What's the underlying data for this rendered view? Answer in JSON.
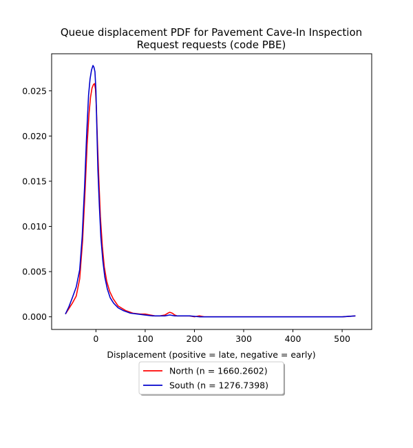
{
  "chart_data": {
    "type": "line",
    "title_lines": [
      "Queue displacement PDF for Pavement Cave-In Inspection",
      "Request  requests (code PBE)"
    ],
    "xlabel": "Displacement (positive = late, negative = early)",
    "ylabel": "",
    "xlim": [
      -90,
      560
    ],
    "ylim": [
      -0.0014,
      0.0291
    ],
    "xticks": [
      0,
      100,
      200,
      300,
      400,
      500
    ],
    "yticks": [
      0.0,
      0.005,
      0.01,
      0.015,
      0.02,
      0.025
    ],
    "ytick_labels": [
      "0.000",
      "0.005",
      "0.010",
      "0.015",
      "0.020",
      "0.025"
    ],
    "grid": false,
    "legend_position": "bottom-center, below plot",
    "series": [
      {
        "name": "North (n = 1660.2602)",
        "color": "#ff0000",
        "x": [
          -62,
          -55,
          -48,
          -40,
          -33,
          -27,
          -22,
          -18,
          -14,
          -11,
          -8,
          -5,
          -3,
          -1,
          1,
          3,
          6,
          9,
          13,
          17,
          22,
          28,
          35,
          45,
          60,
          75,
          90,
          100,
          110,
          120,
          130,
          140,
          146,
          150,
          155,
          160,
          165,
          175,
          190,
          200,
          210,
          220,
          240,
          270,
          300,
          350,
          400,
          450,
          500,
          527
        ],
        "y": [
          0.0003,
          0.0009,
          0.0015,
          0.0023,
          0.0042,
          0.0085,
          0.014,
          0.019,
          0.0225,
          0.0243,
          0.0253,
          0.0257,
          0.0258,
          0.0252,
          0.023,
          0.0195,
          0.0151,
          0.0111,
          0.0078,
          0.0055,
          0.0039,
          0.0028,
          0.002,
          0.0012,
          0.0007,
          0.0004,
          0.0003,
          0.0003,
          0.0002,
          0.0001,
          0.0001,
          0.0002,
          0.0004,
          0.0005,
          0.0004,
          0.0002,
          0.0001,
          0.0001,
          0.0001,
          0.0,
          0.0001,
          0.0,
          0.0,
          0.0,
          0.0,
          0.0,
          0.0,
          0.0,
          0.0,
          0.0001
        ]
      },
      {
        "name": "South (n = 1276.7398)",
        "color": "#0000cc",
        "x": [
          -62,
          -55,
          -48,
          -40,
          -33,
          -28,
          -23,
          -19,
          -15,
          -12,
          -9,
          -6,
          -4,
          -2,
          0,
          2,
          4,
          7,
          10,
          14,
          18,
          23,
          29,
          36,
          45,
          55,
          70,
          85,
          100,
          115,
          130,
          140,
          150,
          160,
          170,
          190,
          210,
          240,
          270,
          300,
          350,
          400,
          450,
          500,
          527
        ],
        "y": [
          0.0003,
          0.0011,
          0.0021,
          0.0033,
          0.0052,
          0.0088,
          0.0145,
          0.02,
          0.0245,
          0.0263,
          0.0273,
          0.0278,
          0.0276,
          0.0271,
          0.025,
          0.0205,
          0.0162,
          0.0122,
          0.0088,
          0.0062,
          0.0044,
          0.0031,
          0.0021,
          0.0015,
          0.001,
          0.0007,
          0.0004,
          0.0003,
          0.0002,
          0.0001,
          0.0001,
          0.0001,
          0.0002,
          0.0001,
          0.0001,
          0.0001,
          0.0,
          0.0,
          0.0,
          0.0,
          0.0,
          0.0,
          0.0,
          0.0,
          0.0001
        ]
      }
    ]
  }
}
